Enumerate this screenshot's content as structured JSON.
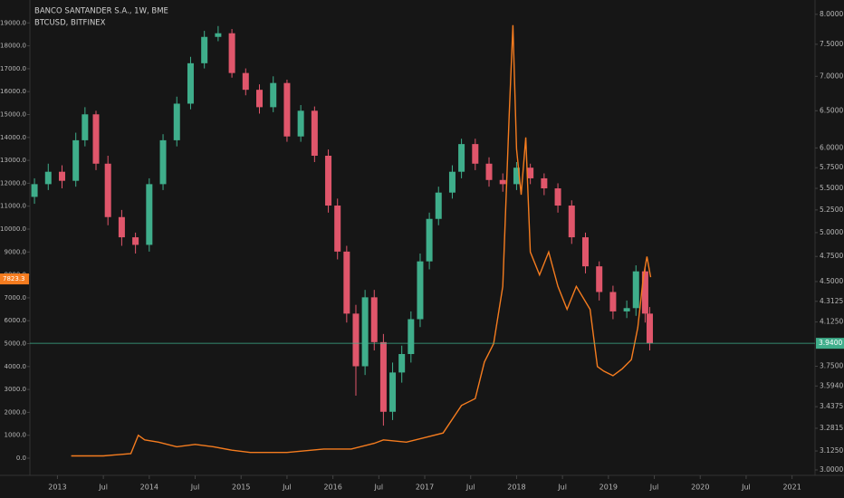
{
  "chart_data": {
    "type": "candlestick",
    "background": "#161616",
    "grid": false,
    "legend": "top-left",
    "xlim": [
      2012.7,
      2021.25
    ],
    "xticks": [
      2013,
      {
        "value": 2013.5,
        "label": "Jul"
      },
      2014,
      {
        "value": 2014.5,
        "label": "Jul"
      },
      2015,
      {
        "value": 2015.5,
        "label": "Jul"
      },
      2016,
      {
        "value": 2016.5,
        "label": "Jul"
      },
      2017,
      {
        "value": 2017.5,
        "label": "Jul"
      },
      2018,
      {
        "value": 2018.5,
        "label": "Jul"
      },
      2019,
      {
        "value": 2019.5,
        "label": "Jul"
      },
      2020,
      {
        "value": 2020.5,
        "label": "Jul"
      },
      2021
    ],
    "ylim": [
      -750,
      20000
    ],
    "yticks": [
      {
        "value": 0,
        "label": "0.0"
      },
      {
        "value": 1000,
        "label": "1000.0"
      },
      {
        "value": 2000,
        "label": "2000.0"
      },
      {
        "value": 3000,
        "label": "3000.0"
      },
      {
        "value": 4000,
        "label": "4000.0"
      },
      {
        "value": 5000,
        "label": "5000.0"
      },
      {
        "value": 6000,
        "label": "6000.0"
      },
      {
        "value": 7000,
        "label": "7000.0"
      },
      {
        "value": 8000,
        "label": "8000.0"
      },
      {
        "value": 9000,
        "label": "9000.0"
      },
      {
        "value": 10000,
        "label": "10000.0"
      },
      {
        "value": 11000,
        "label": "11000.0"
      },
      {
        "value": 12000,
        "label": "12000.0"
      },
      {
        "value": 13000,
        "label": "13000.0"
      },
      {
        "value": 14000,
        "label": "14000.0"
      },
      {
        "value": 15000,
        "label": "15000.0"
      },
      {
        "value": 16000,
        "label": "16000.0"
      },
      {
        "value": 17000,
        "label": "17000.0"
      },
      {
        "value": 18000,
        "label": "18000.0"
      },
      {
        "value": 19000,
        "label": "19000.0"
      }
    ],
    "y2log": true,
    "y2lim": [
      2.965,
      8.25
    ],
    "y2ticks": [
      {
        "value": 3,
        "label": "3.0000"
      },
      {
        "value": 3.125,
        "label": "3.1250"
      },
      {
        "value": 3.2815,
        "label": "3.2815"
      },
      {
        "value": 3.4375,
        "label": "3.4375"
      },
      {
        "value": 3.594,
        "label": "3.5940"
      },
      {
        "value": 3.75,
        "label": "3.7500"
      },
      {
        "value": 4.125,
        "label": "4.1250"
      },
      {
        "value": 4.3125,
        "label": "4.3125"
      },
      {
        "value": 4.5,
        "label": "4.5000"
      },
      {
        "value": 4.75,
        "label": "4.7500"
      },
      {
        "value": 5,
        "label": "5.0000"
      },
      {
        "value": 5.25,
        "label": "5.2500"
      },
      {
        "value": 5.5,
        "label": "5.5000"
      },
      {
        "value": 5.75,
        "label": "5.7500"
      },
      {
        "value": 6,
        "label": "6.0000"
      },
      {
        "value": 6.5,
        "label": "6.5000"
      },
      {
        "value": 7,
        "label": "7.0000"
      },
      {
        "value": 7.5,
        "label": "7.5000"
      },
      {
        "value": 8,
        "label": "8.0000"
      }
    ],
    "series": [
      {
        "name": "BANCO SANTANDER S.A., 1W, BME",
        "type": "candlestick",
        "axis": "y2",
        "up_color": "#3fae8b",
        "down_color": "#e0566b",
        "last_color": "#3fae8b",
        "last": {
          "value": 3.94,
          "label": "3.9400"
        },
        "x": [
          2012.75,
          2012.9,
          2013.05,
          2013.2,
          2013.3,
          2013.42,
          2013.55,
          2013.7,
          2013.85,
          2014.0,
          2014.15,
          2014.3,
          2014.45,
          2014.6,
          2014.75,
          2014.9,
          2015.05,
          2015.2,
          2015.35,
          2015.5,
          2015.65,
          2015.8,
          2015.95,
          2016.05,
          2016.15,
          2016.25,
          2016.35,
          2016.45,
          2016.55,
          2016.65,
          2016.75,
          2016.85,
          2016.95,
          2017.05,
          2017.15,
          2017.3,
          2017.4,
          2017.55,
          2017.7,
          2017.85,
          2018.0,
          2018.15,
          2018.3,
          2018.45,
          2018.6,
          2018.75,
          2018.9,
          2019.05,
          2019.2,
          2019.3,
          2019.4,
          2019.45
        ],
        "open": [
          5.4,
          5.55,
          5.7,
          5.59,
          6.1,
          6.45,
          5.8,
          5.17,
          4.95,
          4.87,
          5.55,
          6.1,
          6.6,
          7.2,
          7.62,
          7.68,
          7.05,
          6.8,
          6.55,
          6.9,
          6.15,
          6.5,
          5.9,
          5.3,
          4.8,
          4.2,
          3.75,
          4.35,
          3.95,
          3.4,
          3.7,
          3.85,
          4.15,
          4.7,
          5.15,
          5.45,
          5.7,
          6.05,
          5.8,
          5.6,
          5.55,
          5.75,
          5.62,
          5.5,
          5.3,
          4.95,
          4.65,
          4.4,
          4.22,
          4.25,
          4.6,
          4.2
        ],
        "high": [
          5.62,
          5.8,
          5.78,
          6.2,
          6.55,
          6.5,
          5.9,
          5.25,
          5.0,
          5.62,
          6.18,
          6.7,
          7.3,
          7.72,
          7.8,
          7.75,
          7.12,
          6.88,
          7.0,
          6.95,
          6.58,
          6.56,
          5.98,
          5.38,
          4.86,
          4.28,
          4.42,
          4.42,
          4.02,
          3.78,
          3.92,
          4.22,
          4.78,
          5.22,
          5.52,
          5.78,
          6.12,
          6.12,
          5.88,
          5.68,
          5.82,
          5.8,
          5.68,
          5.56,
          5.36,
          5.0,
          4.7,
          4.46,
          4.32,
          4.66,
          4.64,
          4.26
        ],
        "low": [
          5.32,
          5.48,
          5.5,
          5.52,
          6.02,
          5.72,
          5.08,
          4.86,
          4.78,
          4.8,
          5.48,
          6.02,
          6.52,
          7.12,
          7.55,
          6.98,
          6.72,
          6.46,
          6.48,
          6.08,
          6.08,
          5.82,
          5.22,
          4.72,
          4.12,
          3.52,
          3.68,
          3.88,
          3.3,
          3.34,
          3.62,
          3.78,
          4.08,
          4.62,
          5.08,
          5.38,
          5.62,
          5.72,
          5.52,
          5.46,
          5.48,
          5.55,
          5.42,
          5.22,
          4.88,
          4.58,
          4.32,
          4.15,
          4.16,
          4.18,
          4.12,
          3.88
        ],
        "close": [
          5.55,
          5.7,
          5.59,
          6.1,
          6.45,
          5.8,
          5.17,
          4.95,
          4.87,
          5.55,
          6.1,
          6.6,
          7.2,
          7.62,
          7.68,
          7.05,
          6.8,
          6.55,
          6.9,
          6.15,
          6.5,
          5.9,
          5.3,
          4.8,
          4.2,
          3.75,
          4.35,
          3.95,
          3.4,
          3.7,
          3.85,
          4.15,
          4.7,
          5.15,
          5.45,
          5.7,
          6.05,
          5.8,
          5.6,
          5.55,
          5.75,
          5.62,
          5.5,
          5.3,
          4.95,
          4.65,
          4.4,
          4.22,
          4.25,
          4.6,
          4.2,
          3.94
        ]
      },
      {
        "name": "BTCUSD, BITFINEX",
        "type": "line",
        "color": "#f57c1f",
        "last": 7823.3,
        "x": [
          2013.15,
          2013.5,
          2013.8,
          2013.88,
          2013.95,
          2014.1,
          2014.3,
          2014.5,
          2014.7,
          2014.9,
          2015.1,
          2015.5,
          2015.9,
          2016.2,
          2016.45,
          2016.55,
          2016.8,
          2017.0,
          2017.2,
          2017.4,
          2017.55,
          2017.65,
          2017.75,
          2017.85,
          2017.92,
          2017.96,
          2018.0,
          2018.05,
          2018.1,
          2018.15,
          2018.25,
          2018.35,
          2018.45,
          2018.55,
          2018.65,
          2018.8,
          2018.88,
          2018.95,
          2019.05,
          2019.15,
          2019.25,
          2019.32,
          2019.38,
          2019.42,
          2019.46
        ],
        "values": [
          100,
          100,
          200,
          1000,
          800,
          700,
          500,
          600,
          500,
          350,
          250,
          250,
          400,
          400,
          650,
          800,
          700,
          900,
          1100,
          2300,
          2600,
          4200,
          5000,
          7500,
          15000,
          18900,
          13500,
          11500,
          14000,
          9000,
          8000,
          9000,
          7500,
          6500,
          7500,
          6500,
          4000,
          3800,
          3600,
          3900,
          4300,
          5700,
          7900,
          8800,
          7900
        ]
      }
    ]
  }
}
